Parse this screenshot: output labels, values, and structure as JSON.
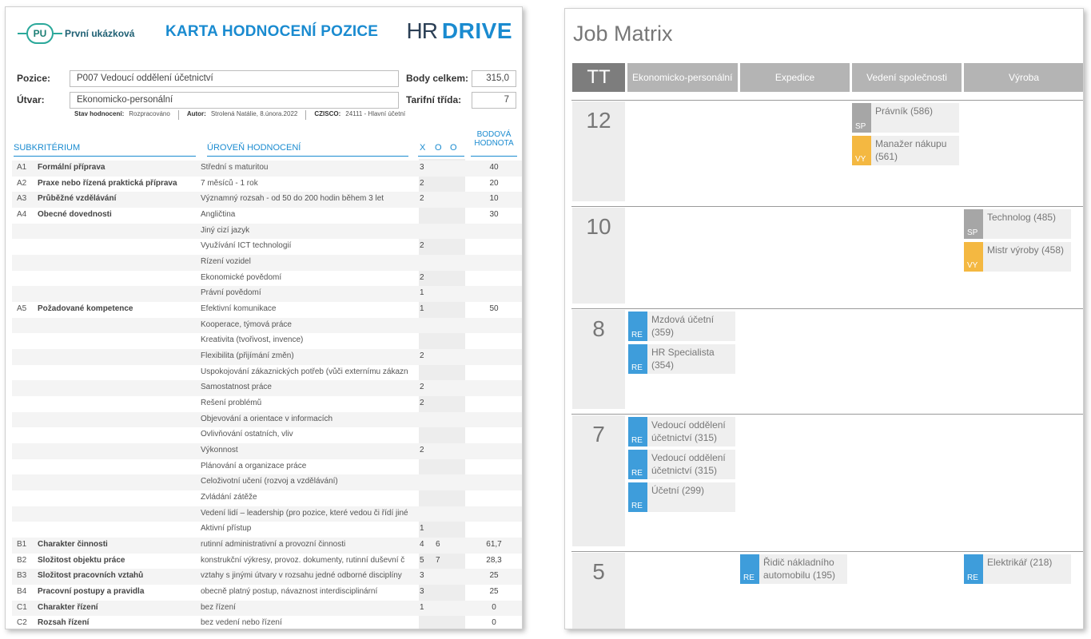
{
  "card": {
    "logo_badge": "PU",
    "logo_name": "První ukázková",
    "title": "KARTA HODNOCENÍ POZICE",
    "hr_brand_thin": "HR",
    "hr_brand_bold": "DRIVE",
    "pozice_label": "Pozice:",
    "pozice_value": "P007 Vedoucí oddělení účetnictví",
    "utvar_label": "Útvar:",
    "utvar_value": "Ekonomicko-personální",
    "body_label": "Body celkem:",
    "body_value": "315,0",
    "tarif_label": "Tarifní třída:",
    "tarif_value": "7",
    "stav_label": "Stav hodnocení:",
    "stav_value": "Rozpracováno",
    "autor_label": "Autor:",
    "autor_value": "Strolená Natálie, 8.února.2022",
    "czisco_label": "CZISCO:",
    "czisco_value": "24111 - Hlavní účetní",
    "col_subkriterium": "SUBKRITÉRIUM",
    "col_uroven": "ÚROVEŇ HODNOCENÍ",
    "col_x": "X",
    "col_o1": "O",
    "col_o2": "O",
    "col_score_1": "BODOVÁ",
    "col_score_2": "HODNOTA",
    "rows": [
      {
        "code": "A1",
        "name": "Formální příprava",
        "level": "Střední s maturitou",
        "x": "3",
        "o": "",
        "score": "40"
      },
      {
        "code": "A2",
        "name": "Praxe nebo řízená praktická příprava",
        "level": "7 měsíců - 1 rok",
        "x": "2",
        "o": "",
        "score": "20"
      },
      {
        "code": "A3",
        "name": "Průběžné vzdělávání",
        "level": "Významný rozsah - od 50 do 200 hodin během 3 let",
        "x": "2",
        "o": "",
        "score": "10"
      },
      {
        "code": "A4",
        "name": "Obecné dovednosti",
        "level": "Angličtina",
        "x": "",
        "o": "",
        "score": "30"
      },
      {
        "code": "",
        "name": "",
        "level": "Jiný cizí jazyk",
        "x": "",
        "o": "",
        "score": ""
      },
      {
        "code": "",
        "name": "",
        "level": "Využívání ICT technologií",
        "x": "2",
        "o": "",
        "score": ""
      },
      {
        "code": "",
        "name": "",
        "level": "Řízení vozidel",
        "x": "",
        "o": "",
        "score": ""
      },
      {
        "code": "",
        "name": "",
        "level": "Ekonomické povědomí",
        "x": "2",
        "o": "",
        "score": ""
      },
      {
        "code": "",
        "name": "",
        "level": "Právní povědomí",
        "x": "1",
        "o": "",
        "score": ""
      },
      {
        "code": "A5",
        "name": "Požadované kompetence",
        "level": "Efektivní komunikace",
        "x": "1",
        "o": "",
        "score": "50"
      },
      {
        "code": "",
        "name": "",
        "level": "Kooperace, týmová práce",
        "x": "",
        "o": "",
        "score": ""
      },
      {
        "code": "",
        "name": "",
        "level": "Kreativita (tvořivost, invence)",
        "x": "",
        "o": "",
        "score": ""
      },
      {
        "code": "",
        "name": "",
        "level": "Flexibilita (přijímání změn)",
        "x": "2",
        "o": "",
        "score": ""
      },
      {
        "code": "",
        "name": "",
        "level": "Uspokojování zákaznických potřeb (vůči externímu zákazn",
        "x": "",
        "o": "",
        "score": ""
      },
      {
        "code": "",
        "name": "",
        "level": "Samostatnost práce",
        "x": "2",
        "o": "",
        "score": ""
      },
      {
        "code": "",
        "name": "",
        "level": "Řešení problémů",
        "x": "2",
        "o": "",
        "score": ""
      },
      {
        "code": "",
        "name": "",
        "level": "Objevování a orientace v informacích",
        "x": "",
        "o": "",
        "score": ""
      },
      {
        "code": "",
        "name": "",
        "level": "Ovlivňování ostatních, vliv",
        "x": "",
        "o": "",
        "score": ""
      },
      {
        "code": "",
        "name": "",
        "level": "Výkonnost",
        "x": "2",
        "o": "",
        "score": ""
      },
      {
        "code": "",
        "name": "",
        "level": "Plánování a organizace práce",
        "x": "",
        "o": "",
        "score": ""
      },
      {
        "code": "",
        "name": "",
        "level": "Celoživotní učení (rozvoj a vzdělávání)",
        "x": "",
        "o": "",
        "score": ""
      },
      {
        "code": "",
        "name": "",
        "level": "Zvládání zátěže",
        "x": "",
        "o": "",
        "score": ""
      },
      {
        "code": "",
        "name": "",
        "level": "Vedení lidí – leadership (pro pozice, které vedou či řídí jiné",
        "x": "",
        "o": "",
        "score": ""
      },
      {
        "code": "",
        "name": "",
        "level": "Aktivní přístup",
        "x": "1",
        "o": "",
        "score": ""
      },
      {
        "code": "B1",
        "name": "Charakter činnosti",
        "level": "rutinní administrativní a provozní činnosti",
        "x": "4",
        "o": "6",
        "score": "61,7"
      },
      {
        "code": "B2",
        "name": "Složitost objektu práce",
        "level": "konstrukční výkresy, provoz. dokumenty, rutinní duševní č",
        "x": "5",
        "o": "7",
        "score": "28,3"
      },
      {
        "code": "B3",
        "name": "Složitost pracovních vztahů",
        "level": "vztahy s jinými útvary v rozsahu jedné odborné disciplíny",
        "x": "3",
        "o": "",
        "score": "25"
      },
      {
        "code": "B4",
        "name": "Pracovní postupy a pravidla",
        "level": "obecně platný postup, návaznost interdisciplinární",
        "x": "3",
        "o": "",
        "score": "25"
      },
      {
        "code": "C1",
        "name": "Charakter řízení",
        "level": "bez řízení",
        "x": "1",
        "o": "",
        "score": "0"
      },
      {
        "code": "C2",
        "name": "Rozsah řízení",
        "level": "bez vedení nebo řízení",
        "x": "",
        "o": "",
        "score": "0"
      }
    ]
  },
  "matrix": {
    "title": "Job Matrix",
    "tt_label": "TT",
    "columns": [
      "Ekonomicko-personální",
      "Expedice",
      "Vedení společnosti",
      "Výroba"
    ],
    "colors": {
      "RE": "#3e9ddb",
      "SP": "#a6a6a6",
      "VY": "#f4b841"
    },
    "grades": [
      {
        "grade": "12",
        "jobs": [
          {
            "col": 2,
            "slot": 0,
            "tag": "SP",
            "label": "Právník (586)"
          },
          {
            "col": 2,
            "slot": 1,
            "tag": "VY",
            "label": "Manažer nákupu (561)"
          }
        ]
      },
      {
        "grade": "10",
        "jobs": [
          {
            "col": 3,
            "slot": 0,
            "tag": "SP",
            "label": "Technolog (485)"
          },
          {
            "col": 3,
            "slot": 1,
            "tag": "VY",
            "label": "Mistr výroby (458)"
          }
        ]
      },
      {
        "grade": "8",
        "jobs": [
          {
            "col": 0,
            "slot": 0,
            "tag": "RE",
            "label": "Mzdová účetní (359)"
          },
          {
            "col": 0,
            "slot": 1,
            "tag": "RE",
            "label": "HR Specialista (354)"
          }
        ]
      },
      {
        "grade": "7",
        "jobs": [
          {
            "col": 0,
            "slot": 0,
            "tag": "RE",
            "label": "Vedoucí oddělení účetnictví (315)"
          },
          {
            "col": 0,
            "slot": 1,
            "tag": "RE",
            "label": "Vedoucí oddělení účetnictví (315)"
          },
          {
            "col": 0,
            "slot": 2,
            "tag": "RE",
            "label": "Účetní (299)"
          }
        ]
      },
      {
        "grade": "5",
        "jobs": [
          {
            "col": 1,
            "slot": 0,
            "tag": "RE",
            "label": "Řidič nákladního automobilu (195)"
          },
          {
            "col": 3,
            "slot": 0,
            "tag": "RE",
            "label": "Elektrikář (218)"
          }
        ]
      }
    ]
  }
}
